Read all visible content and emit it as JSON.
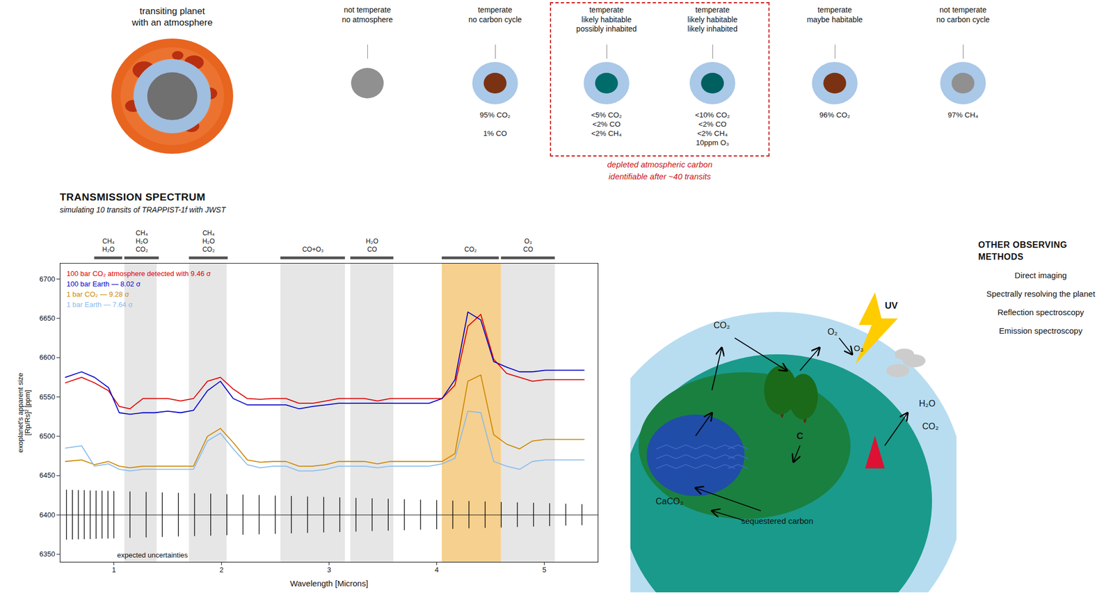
{
  "chart_data": {
    "type": "line",
    "title": "TRANSMISSION SPECTRUM",
    "subtitle": "simulating 10 transits of TRAPPIST-1f with JWST",
    "xlabel": "Wavelength [Microns]",
    "ylabel": "exoplanet's apparent size\n[Rp/Rs]² [ppm]",
    "xlim": [
      0.5,
      5.5
    ],
    "xticks": [
      1,
      2,
      3,
      4,
      5
    ],
    "ylim": [
      6340,
      6720
    ],
    "yticks": [
      6350,
      6400,
      6450,
      6500,
      6550,
      6600,
      6650,
      6700
    ],
    "grid": false,
    "x": [
      0.55,
      0.7,
      0.82,
      0.95,
      1.05,
      1.15,
      1.27,
      1.38,
      1.5,
      1.62,
      1.74,
      1.87,
      1.99,
      2.11,
      2.24,
      2.36,
      2.48,
      2.6,
      2.72,
      2.85,
      2.97,
      3.09,
      3.21,
      3.33,
      3.45,
      3.57,
      3.69,
      3.81,
      3.93,
      4.05,
      4.17,
      4.29,
      4.41,
      4.53,
      4.65,
      4.77,
      4.89,
      5.01,
      5.13,
      5.25,
      5.37
    ],
    "series": [
      {
        "name": "100 bar CO₂ atmosphere detected with 9.46 σ",
        "color": "#dd0000",
        "values": [
          6568,
          6575,
          6568,
          6558,
          6538,
          6535,
          6548,
          6548,
          6548,
          6545,
          6548,
          6570,
          6575,
          6560,
          6548,
          6547,
          6548,
          6548,
          6542,
          6542,
          6545,
          6548,
          6548,
          6548,
          6545,
          6548,
          6548,
          6548,
          6548,
          6548,
          6565,
          6640,
          6655,
          6598,
          6580,
          6575,
          6570,
          6572,
          6572,
          6572,
          6572
        ]
      },
      {
        "name": "100 bar Earth — 8.02 σ",
        "color": "#0000cc",
        "values": [
          6575,
          6582,
          6575,
          6562,
          6530,
          6528,
          6530,
          6530,
          6532,
          6530,
          6533,
          6558,
          6570,
          6548,
          6540,
          6540,
          6540,
          6540,
          6535,
          6538,
          6540,
          6542,
          6542,
          6542,
          6542,
          6542,
          6542,
          6542,
          6542,
          6548,
          6572,
          6658,
          6648,
          6595,
          6588,
          6582,
          6582,
          6584,
          6584,
          6584,
          6584
        ]
      },
      {
        "name": "1 bar CO₂ — 9.28 σ",
        "color": "#cc8800",
        "values": [
          6468,
          6470,
          6464,
          6468,
          6462,
          6460,
          6462,
          6462,
          6462,
          6462,
          6462,
          6500,
          6510,
          6492,
          6470,
          6467,
          6468,
          6468,
          6462,
          6462,
          6464,
          6468,
          6468,
          6468,
          6465,
          6468,
          6468,
          6468,
          6468,
          6468,
          6478,
          6570,
          6578,
          6502,
          6490,
          6484,
          6494,
          6496,
          6496,
          6496,
          6496
        ]
      },
      {
        "name": "1 bar Earth — 7.64 σ",
        "color": "#88bbee",
        "values": [
          6485,
          6488,
          6462,
          6465,
          6458,
          6456,
          6458,
          6458,
          6458,
          6458,
          6458,
          6494,
          6504,
          6484,
          6464,
          6460,
          6462,
          6462,
          6456,
          6456,
          6458,
          6462,
          6462,
          6462,
          6460,
          6462,
          6462,
          6462,
          6462,
          6465,
          6472,
          6532,
          6530,
          6468,
          6462,
          6458,
          6468,
          6470,
          6470,
          6470,
          6470
        ]
      }
    ],
    "bands": [
      {
        "range": [
          1.1,
          1.4
        ],
        "color": "#e2e2e2"
      },
      {
        "range": [
          1.7,
          2.05
        ],
        "color": "#e2e2e2"
      },
      {
        "range": [
          2.55,
          3.15
        ],
        "color": "#e2e2e2"
      },
      {
        "range": [
          3.2,
          3.6
        ],
        "color": "#e2e2e2"
      },
      {
        "range": [
          4.6,
          5.1
        ],
        "color": "#e2e2e2"
      },
      {
        "range": [
          4.05,
          4.6
        ],
        "color": "#f5c87a"
      }
    ],
    "molecule_bands": [
      {
        "x0": 0.82,
        "x1": 1.08,
        "labels": [
          "CH₄",
          "H₂O"
        ]
      },
      {
        "x0": 1.1,
        "x1": 1.42,
        "labels": [
          "CH₄",
          "H₂O",
          "CO₂"
        ]
      },
      {
        "x0": 1.7,
        "x1": 2.06,
        "labels": [
          "CH₄",
          "H₂O",
          "CO₂"
        ]
      },
      {
        "x0": 2.55,
        "x1": 3.15,
        "labels": [
          "CO+O₃"
        ]
      },
      {
        "x0": 3.2,
        "x1": 3.6,
        "labels": [
          "H₂O",
          "CO"
        ]
      },
      {
        "x0": 4.05,
        "x1": 4.58,
        "labels": [
          "CO₂"
        ]
      },
      {
        "x0": 4.6,
        "x1": 5.1,
        "labels": [
          "O₃",
          "CO"
        ]
      }
    ],
    "uncertainties": {
      "label": "expected uncertainties",
      "y": 6400,
      "x": [
        0.56,
        0.615,
        0.67,
        0.725,
        0.78,
        0.835,
        0.89,
        0.945,
        1.0,
        1.15,
        1.3,
        1.45,
        1.6,
        1.75,
        1.9,
        2.05,
        2.2,
        2.35,
        2.5,
        2.65,
        2.8,
        2.95,
        3.1,
        3.25,
        3.4,
        3.55,
        3.7,
        3.85,
        4.0,
        4.15,
        4.3,
        4.45,
        4.6,
        4.75,
        4.9,
        5.05,
        5.2,
        5.35
      ],
      "errors": [
        31.7696,
        31.5584,
        31.3472,
        31.136,
        30.9248,
        30.7136,
        30.5024,
        30.2912,
        30.08,
        29.504,
        28.928,
        28.352,
        27.776,
        27.2,
        26.624,
        26.048,
        25.472,
        24.896,
        24.32,
        23.744,
        23.168,
        22.592,
        22.016,
        21.44,
        20.864,
        20.288,
        19.712,
        19.136,
        18.56,
        17.984,
        17.408,
        16.832,
        16.256,
        15.68,
        15.104,
        14.528,
        13.952,
        13.376
      ]
    },
    "annotations": {
      "planets": [
        {
          "label": "transiting planet\nwith an atmosphere"
        },
        {
          "label": "not temperate\nno atmosphere"
        },
        {
          "label": "temperate\nno carbon cycle",
          "composition": "95% CO₂\n\n1% CO"
        },
        {
          "label": "temperate\nlikely habitable\npossibly inhabited",
          "composition": "<5% CO₂\n<2% CO\n<2% CH₄"
        },
        {
          "label": "temperate\nlikely habitable\nlikely inhabited",
          "composition": "<10% CO₂\n<2% CO\n<2% CH₄\n10ppm O₃"
        },
        {
          "label": "temperate\nmaybe habitable",
          "composition": "96% CO₂"
        },
        {
          "label": "not temperate\nno carbon cycle",
          "composition": "97% CH₄"
        }
      ],
      "highlight": {
        "color": "#cc1111",
        "texts": [
          "depleted atmospheric carbon",
          "identifiable after ~40 transits"
        ]
      },
      "other_methods_title": "OTHER OBSERVING METHODS",
      "other_methods": [
        "Direct imaging",
        "Spectrally resolving the planet",
        "Reflection spectroscopy",
        "Emission spectroscopy"
      ],
      "carbon_cycle": [
        "CO₂",
        "O₂",
        "O₃",
        "C",
        "H₂O",
        "CO₂",
        "CaCO₃",
        "sequestered carbon",
        "UV"
      ]
    }
  }
}
